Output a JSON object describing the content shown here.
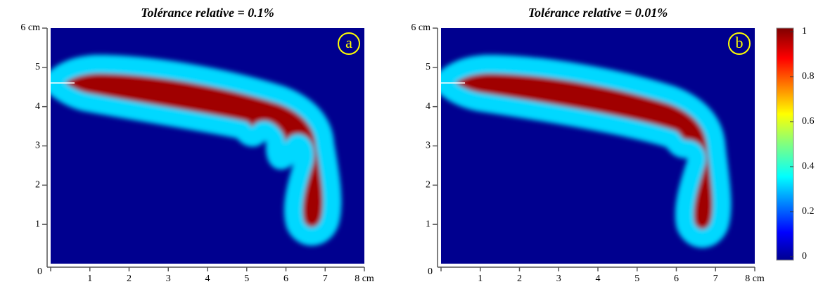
{
  "chart_data": [
    {
      "type": "heatmap",
      "title": "Tolérance relative = 0.1%",
      "panel_label": "a",
      "xlim": [
        0,
        8
      ],
      "ylim": [
        0,
        6
      ],
      "xticks": [
        {
          "value": 0,
          "label": "0"
        },
        1,
        2,
        3,
        4,
        5,
        6,
        7,
        {
          "value": 8,
          "label": "8 cm"
        }
      ],
      "yticks": [
        1,
        2,
        3,
        4,
        5,
        {
          "value": 6,
          "label": "6 cm"
        }
      ]
    },
    {
      "type": "heatmap",
      "title": "Tolérance relative = 0.01%",
      "panel_label": "b",
      "xlim": [
        0,
        8
      ],
      "ylim": [
        0,
        6
      ],
      "xticks": [
        {
          "value": 0,
          "label": "0"
        },
        1,
        2,
        3,
        4,
        5,
        6,
        7,
        {
          "value": 8,
          "label": "8 cm"
        }
      ],
      "yticks": [
        1,
        2,
        3,
        4,
        5,
        {
          "value": 6,
          "label": "6 cm"
        }
      ]
    },
    {
      "type": "colorbar",
      "zlim": [
        0,
        1
      ],
      "zticks": [
        0,
        0.2,
        0.4,
        0.6,
        0.8,
        1
      ]
    }
  ]
}
